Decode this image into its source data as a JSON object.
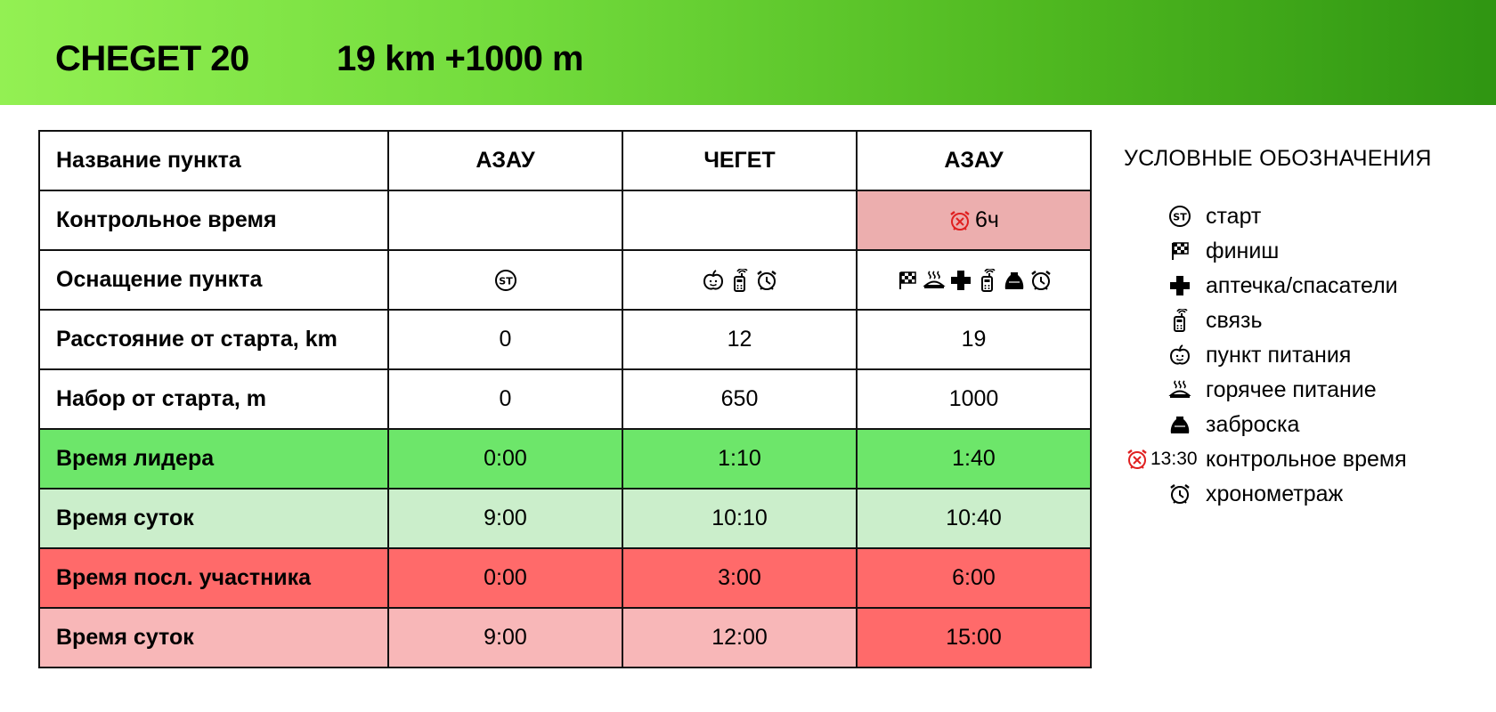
{
  "header": {
    "title": "CHEGET 20",
    "stats": "19 km +1000 m"
  },
  "table": {
    "columns": [
      "Название пункта",
      "АЗАУ",
      "ЧЕГЕТ",
      "АЗАУ"
    ],
    "control_time": {
      "label": "Контрольное время",
      "values": [
        "",
        "",
        "6ч"
      ]
    },
    "equipment": {
      "label": "Оснащение пункта",
      "values": [
        [
          "start-icon"
        ],
        [
          "food-icon",
          "radio-icon",
          "chrono-icon"
        ],
        [
          "finish-icon",
          "hot-food-icon",
          "medical-icon",
          "radio-icon",
          "drop-bag-icon",
          "chrono-icon"
        ]
      ]
    },
    "distance": {
      "label": "Расстояние от старта, km",
      "values": [
        "0",
        "12",
        "19"
      ]
    },
    "climb": {
      "label": "Набор от старта, m",
      "values": [
        "0",
        "650",
        "1000"
      ]
    },
    "leader_time": {
      "label": "Время лидера",
      "values": [
        "0:00",
        "1:10",
        "1:40"
      ]
    },
    "leader_daytime": {
      "label": "Время суток",
      "values": [
        "9:00",
        "10:10",
        "10:40"
      ]
    },
    "last_time": {
      "label": "Время посл. участника",
      "values": [
        "0:00",
        "3:00",
        "6:00"
      ]
    },
    "last_daytime": {
      "label": "Время суток",
      "values": [
        "9:00",
        "12:00",
        "15:00"
      ]
    }
  },
  "legend": {
    "title": "УСЛОВНЫЕ ОБОЗНАЧЕНИЯ",
    "items": [
      {
        "icon": "start-icon",
        "label": "старт"
      },
      {
        "icon": "finish-icon",
        "label": "финиш"
      },
      {
        "icon": "medical-icon",
        "label": "аптечка/спасатели"
      },
      {
        "icon": "radio-icon",
        "label": "связь"
      },
      {
        "icon": "food-icon",
        "label": "пункт питания"
      },
      {
        "icon": "hot-food-icon",
        "label": "горячее питание"
      },
      {
        "icon": "drop-bag-icon",
        "label": "заброска"
      },
      {
        "icon": "cutoff-alarm-icon",
        "label": "контрольное время",
        "example_time": "13:30"
      },
      {
        "icon": "chrono-icon",
        "label": "хронометраж"
      }
    ]
  },
  "colors": {
    "header_gradient_start": "#93f053",
    "header_gradient_end": "#2f9512",
    "leader_row": "#6de66a",
    "leader_day_row": "#cbeecb",
    "last_row": "#ff6a6a",
    "last_day_row": "#f8b7b8",
    "control_time_cell": "#ecaeae",
    "alarm_red": "#e02020"
  }
}
